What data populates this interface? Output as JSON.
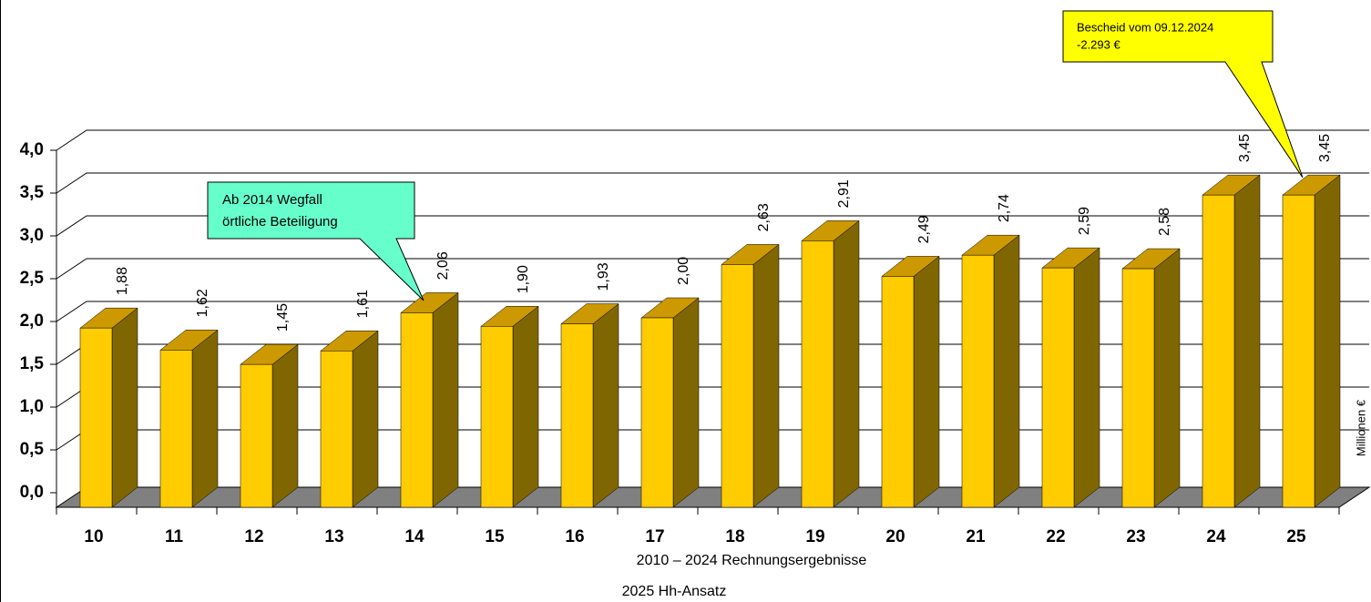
{
  "chart_data": {
    "type": "bar3d",
    "categories": [
      "10",
      "11",
      "12",
      "13",
      "14",
      "15",
      "16",
      "17",
      "18",
      "19",
      "20",
      "21",
      "22",
      "23",
      "24",
      "25"
    ],
    "values": [
      1.88,
      1.62,
      1.45,
      1.61,
      2.06,
      1.9,
      1.93,
      2.0,
      2.63,
      2.91,
      2.49,
      2.74,
      2.59,
      2.58,
      3.45,
      3.45
    ],
    "value_labels": [
      "1,88",
      "1,62",
      "1,45",
      "1,61",
      "2,06",
      "1,90",
      "1,93",
      "2,00",
      "2,63",
      "2,91",
      "2,49",
      "2,74",
      "2,59",
      "2,58",
      "3,45",
      "3,45"
    ],
    "color": "#ffcc00",
    "ylim": [
      0,
      4
    ],
    "yticks": [
      {
        "value": 0,
        "label": "0,0"
      },
      {
        "value": 0.5,
        "label": "0,5"
      },
      {
        "value": 1,
        "label": "1,0"
      },
      {
        "value": 1.5,
        "label": "1,5"
      },
      {
        "value": 2,
        "label": "2,0"
      },
      {
        "value": 2.5,
        "label": "2,5"
      },
      {
        "value": 3,
        "label": "3,0"
      },
      {
        "value": 3.5,
        "label": "3,5"
      },
      {
        "value": 4,
        "label": "4,0"
      }
    ],
    "y_axis_label": "Millionen €",
    "grid": true,
    "annotations": [
      [
        "Ab 2014 Wegfall",
        "örtliche Beteiligung"
      ],
      [
        "Bescheid vom 09.12.2024",
        "-2.293 €"
      ]
    ],
    "footnotes": [
      "2010 – 2024 Rechnungsergebnisse",
      "2025 Hh-Ansatz"
    ]
  }
}
